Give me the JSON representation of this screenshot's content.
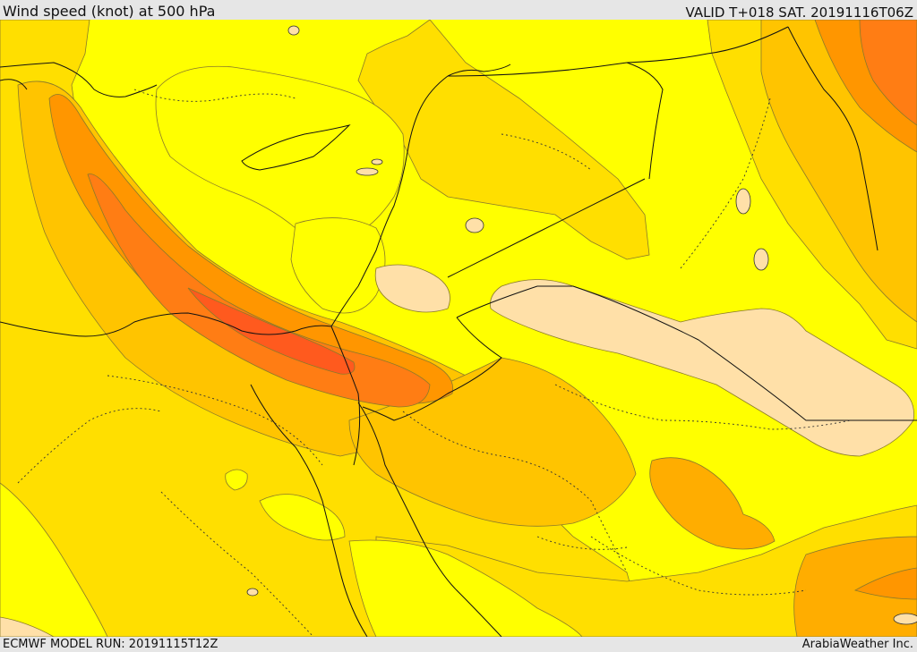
{
  "header": {
    "title": "Wind speed (knot) at 500 hPa",
    "valid": "VALID T+018 SAT. 20191116T06Z"
  },
  "footer": {
    "model_run": "ECMWF MODEL RUN: 20191115T12Z",
    "credit": "ArabiaWeather Inc."
  },
  "colors": {
    "calm": "#ffe0a8",
    "band_1": "#ffff00",
    "band_2": "#ffdf00",
    "band_3": "#ffc400",
    "band_4": "#ffad00",
    "band_5": "#ff9600",
    "band_6": "#ff7d14",
    "band_7": "#ff5a1e"
  }
}
